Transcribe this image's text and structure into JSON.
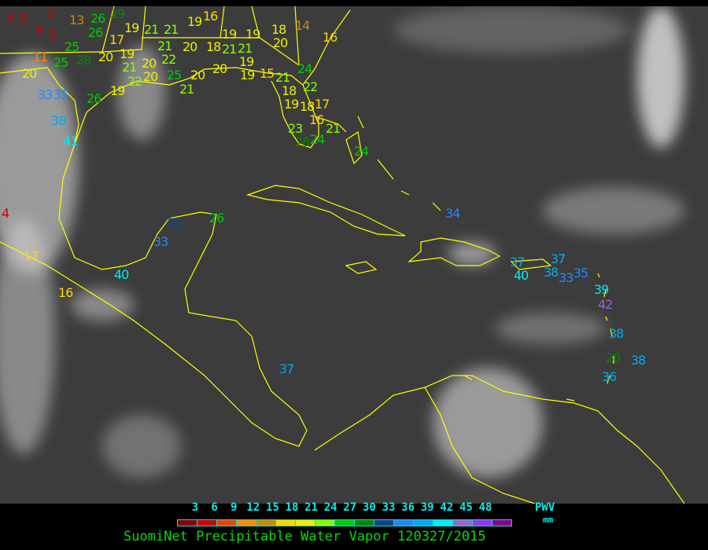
{
  "title": "SuomiNet Precipitable Water Vapor 120327/2015",
  "legend": {
    "unit_top": "PWV",
    "unit_bottom": "mm",
    "ticks": [
      "3",
      "6",
      "9",
      "12",
      "15",
      "18",
      "21",
      "24",
      "27",
      "30",
      "33",
      "36",
      "39",
      "42",
      "45",
      "48"
    ],
    "colors": [
      "#8b0000",
      "#cc0000",
      "#ee4400",
      "#ff8800",
      "#cc8800",
      "#ffd700",
      "#eeee00",
      "#88ff00",
      "#00cc00",
      "#008800",
      "#114488",
      "#2288ff",
      "#00aaee",
      "#00eeee",
      "#9966cc",
      "#9933ee",
      "#880088"
    ]
  },
  "coastline_color": "#ffff00",
  "stations": [
    "4",
    "3",
    "5",
    "13",
    "26",
    "29",
    "4",
    "5",
    "26",
    "19",
    "21",
    "21",
    "19",
    "16",
    "19",
    "19",
    "18",
    "14",
    "16",
    "11",
    "25",
    "28",
    "20",
    "25",
    "17",
    "19",
    "21",
    "20",
    "22",
    "21",
    "20",
    "18",
    "21",
    "21",
    "19",
    "20",
    "19",
    "22",
    "20",
    "25",
    "20",
    "20",
    "21",
    "15",
    "24",
    "21",
    "18",
    "22",
    "19",
    "18",
    "17",
    "16",
    "23",
    "28",
    "24",
    "21",
    "24",
    "20",
    "33",
    "35",
    "38",
    "41",
    "26",
    "19",
    "17",
    "16",
    "4",
    "40",
    "33",
    "30",
    "26",
    "34",
    "37",
    "40",
    "37",
    "38",
    "33",
    "35",
    "39",
    "42",
    "38",
    "28",
    "38",
    "36",
    "37"
  ]
}
